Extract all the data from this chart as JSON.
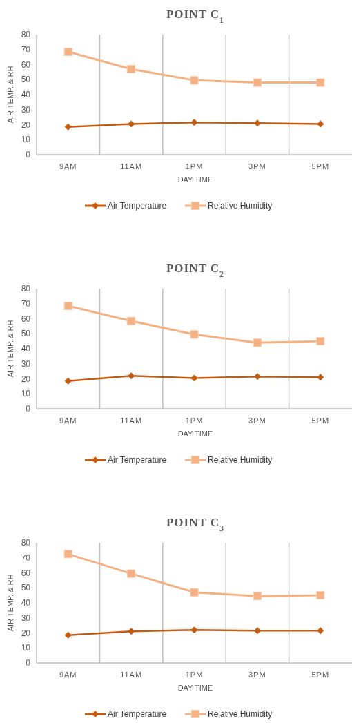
{
  "chart_data": [
    {
      "type": "line",
      "title": "POINT C$_{1}$",
      "xlabel": "DAY TIME",
      "ylabel": "AIR TEMP. & RH",
      "categories": [
        "9AM",
        "11AM",
        "1PM",
        "3PM",
        "5PM"
      ],
      "series": [
        {
          "name": "Air Temperature",
          "color": "#c55a11",
          "marker": "diamond",
          "values": [
            18.5,
            20.5,
            21.5,
            21,
            20.5
          ]
        },
        {
          "name": "Relative Humidity",
          "color": "#f4b183",
          "marker": "square",
          "values": [
            68.5,
            57,
            49.5,
            48,
            48
          ]
        }
      ],
      "ylim": [
        0,
        80
      ],
      "yticks": [
        0,
        10,
        20,
        30,
        40,
        50,
        60,
        70,
        80
      ],
      "grid": "x",
      "legend": "bottom"
    },
    {
      "type": "line",
      "title": "POINT C$_{2}$",
      "xlabel": "DAY TIME",
      "ylabel": "AIR TEMP. & RH",
      "categories": [
        "9AM",
        "11AM",
        "1PM",
        "3PM",
        "5PM"
      ],
      "series": [
        {
          "name": "Air Temperature",
          "color": "#c55a11",
          "marker": "diamond",
          "values": [
            18.5,
            22,
            20.5,
            21.5,
            21
          ]
        },
        {
          "name": "Relative Humidity",
          "color": "#f4b183",
          "marker": "square",
          "values": [
            68.5,
            58.5,
            49.5,
            44,
            45
          ]
        }
      ],
      "ylim": [
        0,
        80
      ],
      "yticks": [
        0,
        10,
        20,
        30,
        40,
        50,
        60,
        70,
        80
      ],
      "grid": "x",
      "legend": "bottom"
    },
    {
      "type": "line",
      "title": "POINT C$_{3}$",
      "xlabel": "DAY TIME",
      "ylabel": "AIR TEMP. & RH",
      "categories": [
        "9AM",
        "11AM",
        "1PM",
        "3PM",
        "5PM"
      ],
      "series": [
        {
          "name": "Air Temperature",
          "color": "#c55a11",
          "marker": "diamond",
          "values": [
            18.5,
            21,
            22,
            21.5,
            21.5
          ]
        },
        {
          "name": "Relative Humidity",
          "color": "#f4b183",
          "marker": "square",
          "values": [
            72.5,
            59.5,
            47,
            44.5,
            45
          ]
        }
      ],
      "ylim": [
        0,
        80
      ],
      "yticks": [
        0,
        10,
        20,
        30,
        40,
        50,
        60,
        70,
        80
      ],
      "grid": "x",
      "legend": "bottom"
    }
  ]
}
